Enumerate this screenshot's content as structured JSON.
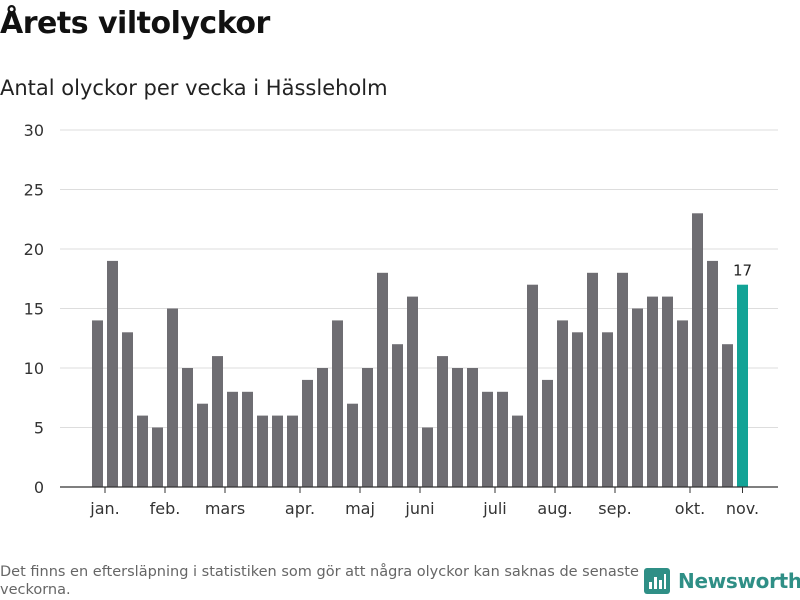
{
  "title": "Årets viltolyckor",
  "subtitle": "Antal olyckor per vecka i Hässleholm",
  "footnote": "Det finns en eftersläpning i statistiken som gör att några olyckor kan saknas de senaste veckorna.",
  "brand": {
    "name": "Newsworthy",
    "icon": "newsworthy-logo-icon",
    "color": "#2f8f86"
  },
  "chart_data": {
    "type": "bar",
    "title": "Årets viltolyckor",
    "subtitle": "Antal olyckor per vecka i Hässleholm",
    "xlabel": "",
    "ylabel": "",
    "ylim": [
      0,
      30
    ],
    "yticks": [
      0,
      5,
      10,
      15,
      20,
      25,
      30
    ],
    "grid": true,
    "legend": "none",
    "colors": {
      "bar": "#6e6d72",
      "highlight": "#12a396",
      "grid": "#dddddd",
      "axis": "#333333"
    },
    "values": [
      14,
      19,
      13,
      6,
      5,
      15,
      10,
      7,
      11,
      8,
      8,
      6,
      6,
      6,
      9,
      10,
      14,
      7,
      10,
      18,
      12,
      16,
      5,
      11,
      10,
      10,
      8,
      8,
      6,
      17,
      9,
      14,
      13,
      18,
      13,
      18,
      15,
      16,
      16,
      14,
      23,
      19,
      12,
      17
    ],
    "highlight_index": 43,
    "data_labels": [
      {
        "index": 43,
        "text": "17"
      }
    ],
    "month_ticks": [
      {
        "label": "jan.",
        "index": 0.5
      },
      {
        "label": "feb.",
        "index": 4.5
      },
      {
        "label": "mars",
        "index": 8.5
      },
      {
        "label": "apr.",
        "index": 13.5
      },
      {
        "label": "maj",
        "index": 17.5
      },
      {
        "label": "juni",
        "index": 21.5
      },
      {
        "label": "juli",
        "index": 26.5
      },
      {
        "label": "aug.",
        "index": 30.5
      },
      {
        "label": "sep.",
        "index": 34.5
      },
      {
        "label": "okt.",
        "index": 39.5
      },
      {
        "label": "nov.",
        "index": 43
      }
    ]
  }
}
